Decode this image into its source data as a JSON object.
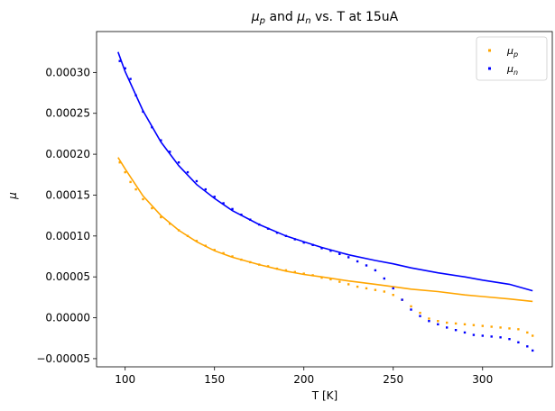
{
  "chart_data": {
    "type": "scatter",
    "title_parts": [
      "μ",
      "p",
      " and ",
      "μ",
      "n",
      " vs. T at 15uA"
    ],
    "xlabel": "T [K]",
    "ylabel": "μ",
    "xlim": [
      84,
      339
    ],
    "ylim": [
      -6e-05,
      0.00035
    ],
    "xticks": [
      100,
      150,
      200,
      250,
      300
    ],
    "xtick_labels": [
      "100",
      "150",
      "200",
      "250",
      "300"
    ],
    "yticks": [
      -5e-05,
      0,
      5e-05,
      0.0001,
      0.00015,
      0.0002,
      0.00025,
      0.0003
    ],
    "ytick_labels": [
      "−0.00005",
      "0.00000",
      "0.00005",
      "0.00010",
      "0.00015",
      "0.00020",
      "0.00025",
      "0.00030"
    ],
    "grid": false,
    "legend_position": "top-right",
    "series": [
      {
        "name_base": "μ",
        "name_sub": "p",
        "color": "#ffa500",
        "points": [
          [
            97,
            0.00019
          ],
          [
            100,
            0.000178
          ],
          [
            103,
            0.000166
          ],
          [
            106,
            0.000157
          ],
          [
            110,
            0.000145
          ],
          [
            115,
            0.000134
          ],
          [
            120,
            0.000123
          ],
          [
            125,
            0.000115
          ],
          [
            130,
            0.000107
          ],
          [
            135,
            0.0001
          ],
          [
            140,
            9.4e-05
          ],
          [
            145,
            8.8e-05
          ],
          [
            150,
            8.3e-05
          ],
          [
            155,
            7.9e-05
          ],
          [
            160,
            7.5e-05
          ],
          [
            165,
            7.1e-05
          ],
          [
            170,
            6.8e-05
          ],
          [
            175,
            6.5e-05
          ],
          [
            180,
            6.3e-05
          ],
          [
            185,
            6e-05
          ],
          [
            190,
            5.8e-05
          ],
          [
            195,
            5.6e-05
          ],
          [
            200,
            5.4e-05
          ],
          [
            205,
            5.2e-05
          ],
          [
            210,
            4.9e-05
          ],
          [
            215,
            4.7e-05
          ],
          [
            220,
            4.4e-05
          ],
          [
            225,
            4.1e-05
          ],
          [
            230,
            3.8e-05
          ],
          [
            235,
            3.6e-05
          ],
          [
            240,
            3.4e-05
          ],
          [
            245,
            3.2e-05
          ],
          [
            250,
            2.8e-05
          ],
          [
            255,
            2.2e-05
          ],
          [
            260,
            1.4e-05
          ],
          [
            265,
            6e-06
          ],
          [
            270,
            -1e-06
          ],
          [
            275,
            -4e-06
          ],
          [
            280,
            -6e-06
          ],
          [
            285,
            -7e-06
          ],
          [
            290,
            -8e-06
          ],
          [
            295,
            -9e-06
          ],
          [
            300,
            -1e-05
          ],
          [
            305,
            -1.1e-05
          ],
          [
            310,
            -1.2e-05
          ],
          [
            315,
            -1.3e-05
          ],
          [
            320,
            -1.4e-05
          ],
          [
            325,
            -1.8e-05
          ],
          [
            328,
            -2.2e-05
          ]
        ],
        "fit": [
          [
            96,
            0.000196
          ],
          [
            100,
            0.000182
          ],
          [
            110,
            0.000149
          ],
          [
            120,
            0.000125
          ],
          [
            130,
            0.000107
          ],
          [
            140,
            9.3e-05
          ],
          [
            150,
            8.2e-05
          ],
          [
            160,
            7.4e-05
          ],
          [
            175,
            6.5e-05
          ],
          [
            190,
            5.7e-05
          ],
          [
            200,
            5.3e-05
          ],
          [
            210,
            5e-05
          ],
          [
            225,
            4.5e-05
          ],
          [
            240,
            4.1e-05
          ],
          [
            250,
            3.8e-05
          ],
          [
            260,
            3.5e-05
          ],
          [
            275,
            3.2e-05
          ],
          [
            290,
            2.8e-05
          ],
          [
            300,
            2.6e-05
          ],
          [
            315,
            2.3e-05
          ],
          [
            328,
            2e-05
          ]
        ]
      },
      {
        "name_base": "μ",
        "name_sub": "n",
        "color": "#0000ff",
        "points": [
          [
            97,
            0.000314
          ],
          [
            100,
            0.000305
          ],
          [
            103,
            0.000292
          ],
          [
            106,
            0.000272
          ],
          [
            110,
            0.000252
          ],
          [
            115,
            0.000233
          ],
          [
            120,
            0.000217
          ],
          [
            125,
            0.000203
          ],
          [
            130,
            0.00019
          ],
          [
            135,
            0.000178
          ],
          [
            140,
            0.000167
          ],
          [
            145,
            0.000157
          ],
          [
            150,
            0.000148
          ],
          [
            155,
            0.00014
          ],
          [
            160,
            0.000133
          ],
          [
            165,
            0.000126
          ],
          [
            170,
            0.00012
          ],
          [
            175,
            0.000114
          ],
          [
            180,
            0.000109
          ],
          [
            185,
            0.000104
          ],
          [
            190,
            0.0001
          ],
          [
            195,
            9.6e-05
          ],
          [
            200,
            9.2e-05
          ],
          [
            205,
            8.9e-05
          ],
          [
            210,
            8.5e-05
          ],
          [
            215,
            8.2e-05
          ],
          [
            220,
            7.8e-05
          ],
          [
            225,
            7.4e-05
          ],
          [
            230,
            6.9e-05
          ],
          [
            235,
            6.4e-05
          ],
          [
            240,
            5.8e-05
          ],
          [
            245,
            4.8e-05
          ],
          [
            250,
            3.6e-05
          ],
          [
            255,
            2.2e-05
          ],
          [
            260,
            1e-05
          ],
          [
            265,
            2e-06
          ],
          [
            270,
            -4e-06
          ],
          [
            275,
            -8e-06
          ],
          [
            280,
            -1.2e-05
          ],
          [
            285,
            -1.5e-05
          ],
          [
            290,
            -1.8e-05
          ],
          [
            295,
            -2.1e-05
          ],
          [
            300,
            -2.2e-05
          ],
          [
            305,
            -2.3e-05
          ],
          [
            310,
            -2.4e-05
          ],
          [
            315,
            -2.6e-05
          ],
          [
            320,
            -3e-05
          ],
          [
            325,
            -3.5e-05
          ],
          [
            328,
            -4e-05
          ]
        ],
        "fit": [
          [
            96,
            0.000325
          ],
          [
            100,
            0.000301
          ],
          [
            110,
            0.000253
          ],
          [
            120,
            0.000215
          ],
          [
            130,
            0.000186
          ],
          [
            140,
            0.000163
          ],
          [
            150,
            0.000146
          ],
          [
            160,
            0.000131
          ],
          [
            175,
            0.000114
          ],
          [
            190,
            0.0001
          ],
          [
            200,
            9.3e-05
          ],
          [
            210,
            8.6e-05
          ],
          [
            225,
            7.7e-05
          ],
          [
            240,
            7e-05
          ],
          [
            250,
            6.6e-05
          ],
          [
            260,
            6.1e-05
          ],
          [
            275,
            5.5e-05
          ],
          [
            290,
            5e-05
          ],
          [
            300,
            4.6e-05
          ],
          [
            315,
            4.1e-05
          ],
          [
            328,
            3.3e-05
          ]
        ]
      }
    ]
  }
}
